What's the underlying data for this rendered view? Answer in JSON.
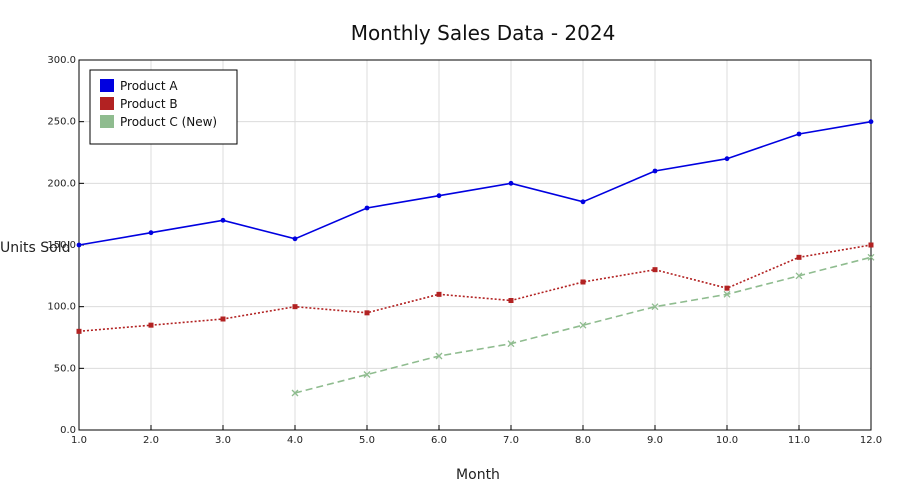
{
  "chart_data": {
    "type": "line",
    "title": "Monthly Sales Data - 2024",
    "xlabel": "Month",
    "ylabel": "Units Sold",
    "xlim": [
      1,
      12
    ],
    "ylim": [
      0,
      300
    ],
    "x_ticks": [
      "1.0",
      "2.0",
      "3.0",
      "4.0",
      "5.0",
      "6.0",
      "7.0",
      "8.0",
      "9.0",
      "10.0",
      "11.0",
      "12.0"
    ],
    "y_ticks": [
      "0.0",
      "50.0",
      "100.0",
      "150.0",
      "200.0",
      "250.0",
      "300.0"
    ],
    "grid": true,
    "legend_position": "top-left",
    "series": [
      {
        "name": "Product A",
        "color": "#0000e0",
        "line_style": "solid",
        "marker": "circle",
        "x": [
          1,
          2,
          3,
          4,
          5,
          6,
          7,
          8,
          9,
          10,
          11,
          12
        ],
        "values": [
          150,
          160,
          170,
          155,
          180,
          190,
          200,
          185,
          210,
          220,
          240,
          250
        ]
      },
      {
        "name": "Product B",
        "color": "#b22222",
        "line_style": "dotted",
        "marker": "square",
        "x": [
          1,
          2,
          3,
          4,
          5,
          6,
          7,
          8,
          9,
          10,
          11,
          12
        ],
        "values": [
          80,
          85,
          90,
          100,
          95,
          110,
          105,
          120,
          130,
          115,
          140,
          150
        ]
      },
      {
        "name": "Product C (New)",
        "color": "#8fbc8f",
        "line_style": "dashed",
        "marker": "x",
        "x": [
          4,
          5,
          6,
          7,
          8,
          9,
          10,
          11,
          12
        ],
        "values": [
          30,
          45,
          60,
          70,
          85,
          100,
          110,
          125,
          140
        ]
      }
    ]
  }
}
